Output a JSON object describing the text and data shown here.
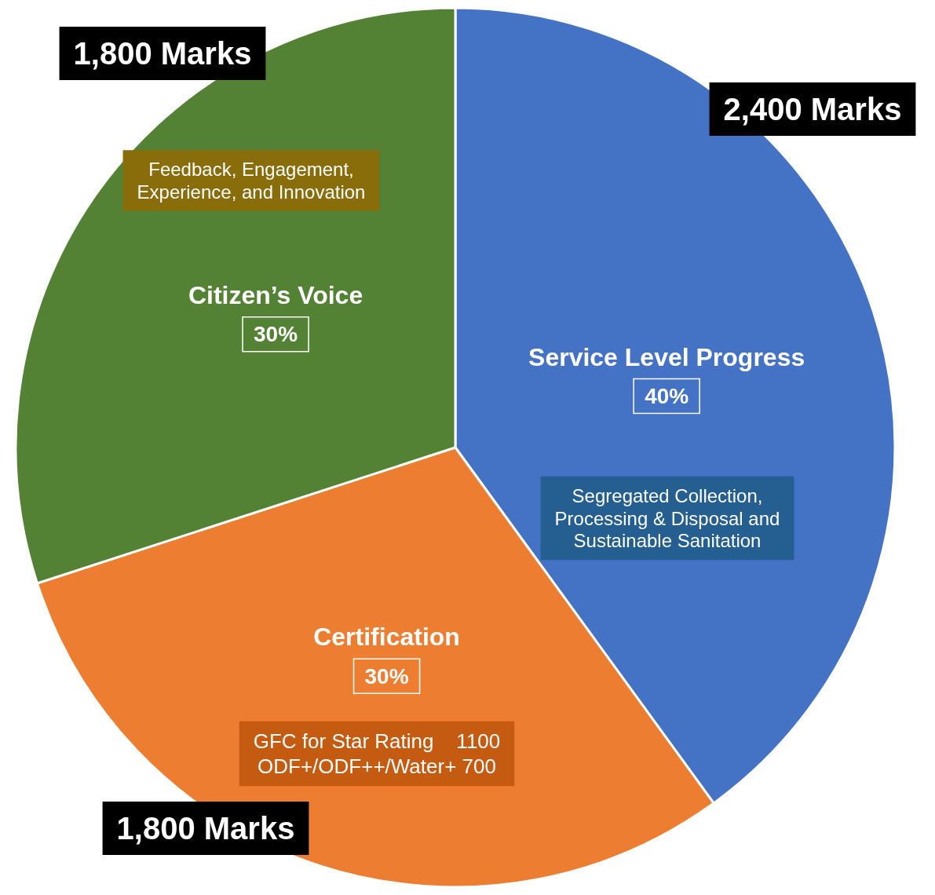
{
  "chart_data": {
    "type": "pie",
    "categories": [
      "Service Level Progress",
      "Certification",
      "Citizen’s Voice"
    ],
    "values": [
      40,
      30,
      30
    ],
    "value_labels": [
      "40%",
      "30%",
      "30%"
    ],
    "colors": [
      "#4472c4",
      "#ed7d31",
      "#548235"
    ],
    "annotations": [
      "2,400 Marks",
      "1,800 Marks",
      "1,800 Marks",
      "Segregated Collection,\nProcessing & Disposal and\nSustainable Sanitation",
      "GFC for Star Rating    1100\nODF+/ODF++/Water+ 700",
      "Feedback, Engagement,\nExperience, and Innovation"
    ]
  }
}
